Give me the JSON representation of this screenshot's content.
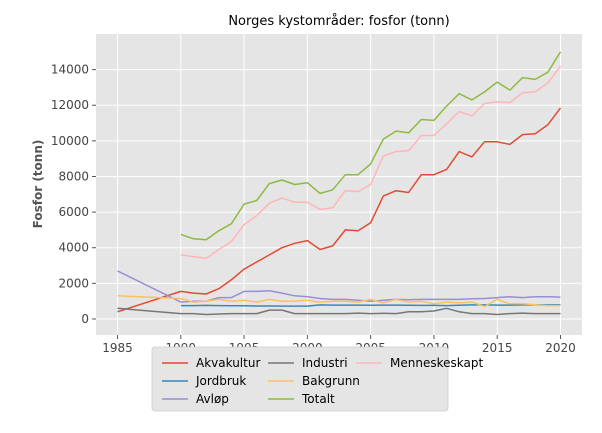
{
  "chart_data": {
    "type": "line",
    "title": "Norges kystområder: fosfor (tonn)",
    "xlabel": "",
    "ylabel": "Fosfor (tonn)",
    "xlim": [
      1983.3,
      2021.7
    ],
    "ylim": [
      -900,
      16000
    ],
    "xticks": [
      1985,
      1990,
      1995,
      2000,
      2005,
      2010,
      2015,
      2020
    ],
    "yticks": [
      0,
      2000,
      4000,
      6000,
      8000,
      10000,
      12000,
      14000
    ],
    "ytick_labels": [
      "0",
      "2000",
      "4000",
      "6000",
      "8000",
      "10000",
      "12000",
      "14000"
    ],
    "grid": true,
    "legend_position": "bottom-center",
    "series": [
      {
        "name": "Akvakultur",
        "color": "#E24A33",
        "x": [
          1985,
          1990,
          1991,
          1992,
          1993,
          1994,
          1995,
          1996,
          1997,
          1998,
          1999,
          2000,
          2001,
          2002,
          2003,
          2004,
          2005,
          2006,
          2007,
          2008,
          2009,
          2010,
          2011,
          2012,
          2013,
          2014,
          2015,
          2016,
          2017,
          2018,
          2019,
          2020
        ],
        "y": [
          400,
          1550,
          1450,
          1400,
          1700,
          2200,
          2800,
          3200,
          3600,
          4000,
          4250,
          4400,
          3900,
          4100,
          5000,
          4950,
          5400,
          6900,
          7200,
          7100,
          8100,
          8100,
          8400,
          9400,
          9100,
          9950,
          9950,
          9800,
          10350,
          10400,
          10900,
          11850
        ]
      },
      {
        "name": "Jordbruk",
        "color": "#348ABD",
        "x": [
          1990,
          1991,
          1992,
          1993,
          1994,
          1995,
          1996,
          1997,
          1998,
          1999,
          2000,
          2001,
          2002,
          2003,
          2004,
          2005,
          2006,
          2007,
          2008,
          2009,
          2010,
          2011,
          2012,
          2013,
          2014,
          2015,
          2016,
          2017,
          2018,
          2019,
          2020
        ],
        "y": [
          750,
          750,
          760,
          750,
          740,
          740,
          730,
          730,
          720,
          720,
          720,
          790,
          780,
          780,
          780,
          770,
          780,
          780,
          770,
          760,
          760,
          750,
          770,
          790,
          790,
          780,
          780,
          790,
          790,
          790,
          790
        ]
      },
      {
        "name": "Avløp",
        "color": "#988ED5",
        "x": [
          1985,
          1990,
          1991,
          1992,
          1993,
          1994,
          1995,
          1996,
          1997,
          1998,
          1999,
          2000,
          2001,
          2002,
          2003,
          2004,
          2005,
          2006,
          2007,
          2008,
          2009,
          2010,
          2011,
          2012,
          2013,
          2014,
          2015,
          2016,
          2017,
          2018,
          2019,
          2020
        ],
        "y": [
          2700,
          950,
          1000,
          1000,
          1200,
          1200,
          1550,
          1550,
          1580,
          1450,
          1300,
          1250,
          1150,
          1100,
          1100,
          1050,
          1000,
          1050,
          1100,
          1080,
          1100,
          1100,
          1100,
          1100,
          1130,
          1150,
          1200,
          1250,
          1200,
          1250,
          1250,
          1230
        ]
      },
      {
        "name": "Industri",
        "color": "#777777",
        "x": [
          1985,
          1990,
          1991,
          1992,
          1993,
          1994,
          1995,
          1996,
          1997,
          1998,
          1999,
          2000,
          2001,
          2002,
          2003,
          2004,
          2005,
          2006,
          2007,
          2008,
          2009,
          2010,
          2011,
          2012,
          2013,
          2014,
          2015,
          2016,
          2017,
          2018,
          2019,
          2020
        ],
        "y": [
          600,
          300,
          300,
          250,
          280,
          300,
          300,
          300,
          500,
          500,
          300,
          300,
          300,
          300,
          300,
          330,
          300,
          320,
          300,
          400,
          400,
          450,
          600,
          400,
          300,
          300,
          250,
          300,
          330,
          300,
          300,
          300
        ]
      },
      {
        "name": "Bakgrunn",
        "color": "#FBC15E",
        "x": [
          1985,
          1990,
          1991,
          1992,
          1993,
          1994,
          1995,
          1996,
          1997,
          1998,
          1999,
          2000,
          2001,
          2002,
          2003,
          2004,
          2005,
          2006,
          2007,
          2008,
          2009,
          2010,
          2011,
          2012,
          2013,
          2014,
          2015,
          2016,
          2017,
          2018,
          2019,
          2020
        ],
        "y": [
          1300,
          1150,
          950,
          1000,
          1100,
          1000,
          1050,
          950,
          1100,
          1000,
          1000,
          1050,
          950,
          1000,
          1000,
          950,
          1100,
          900,
          1100,
          950,
          1000,
          850,
          950,
          900,
          950,
          700,
          1100,
          850,
          850,
          800,
          750,
          750
        ]
      },
      {
        "name": "Totalt",
        "color": "#8EBA42",
        "x": [
          1990,
          1991,
          1992,
          1993,
          1994,
          1995,
          1996,
          1997,
          1998,
          1999,
          2000,
          2001,
          2002,
          2003,
          2004,
          2005,
          2006,
          2007,
          2008,
          2009,
          2010,
          2011,
          2012,
          2013,
          2014,
          2015,
          2016,
          2017,
          2018,
          2019,
          2020
        ],
        "y": [
          4750,
          4500,
          4450,
          4950,
          5350,
          6450,
          6650,
          7600,
          7800,
          7550,
          7650,
          7050,
          7250,
          8100,
          8100,
          8700,
          10100,
          10550,
          10450,
          11200,
          11150,
          11950,
          12650,
          12300,
          12750,
          13300,
          12850,
          13550,
          13450,
          13850,
          15000
        ]
      },
      {
        "name": "Menneskeskapt",
        "color": "#FFB5B8",
        "x": [
          1990,
          1991,
          1992,
          1993,
          1994,
          1995,
          1996,
          1997,
          1998,
          1999,
          2000,
          2001,
          2002,
          2003,
          2004,
          2005,
          2006,
          2007,
          2008,
          2009,
          2010,
          2011,
          2012,
          2013,
          2014,
          2015,
          2016,
          2017,
          2018,
          2019,
          2020
        ],
        "y": [
          3600,
          3500,
          3400,
          3900,
          4350,
          5300,
          5800,
          6500,
          6800,
          6550,
          6550,
          6150,
          6250,
          7200,
          7150,
          7550,
          9150,
          9400,
          9450,
          10300,
          10300,
          10950,
          11650,
          11400,
          12100,
          12200,
          12150,
          12700,
          12750,
          13250,
          14200
        ]
      }
    ]
  }
}
